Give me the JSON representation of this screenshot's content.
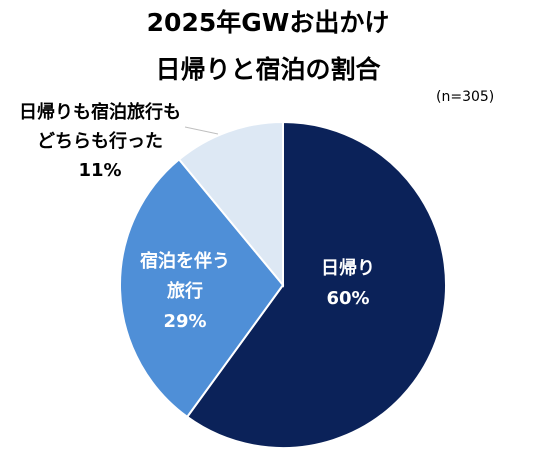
{
  "title_line1": "2025年GWお出かけ",
  "title_line2": "日帰りと宿泊の割合",
  "note": "(n=305)",
  "chart_data": {
    "type": "pie",
    "title": "2025年GWお出かけ 日帰りと宿泊の割合",
    "slices": [
      {
        "lines": [
          "日帰り"
        ],
        "percent_label": "60%",
        "value": 60,
        "color": "#0b2259"
      },
      {
        "lines": [
          "宿泊を伴う",
          "旅行"
        ],
        "percent_label": "29%",
        "value": 29,
        "color": "#4f8fd7"
      },
      {
        "lines": [
          "日帰りも宿泊旅行も",
          "どちらも行った"
        ],
        "percent_label": "11%",
        "value": 11,
        "color": "#dde8f4"
      }
    ],
    "start_angle_deg": 0,
    "direction": "clockwise",
    "slice_border_color": "#ffffff",
    "leader_line_color": "#bfbfbf"
  }
}
